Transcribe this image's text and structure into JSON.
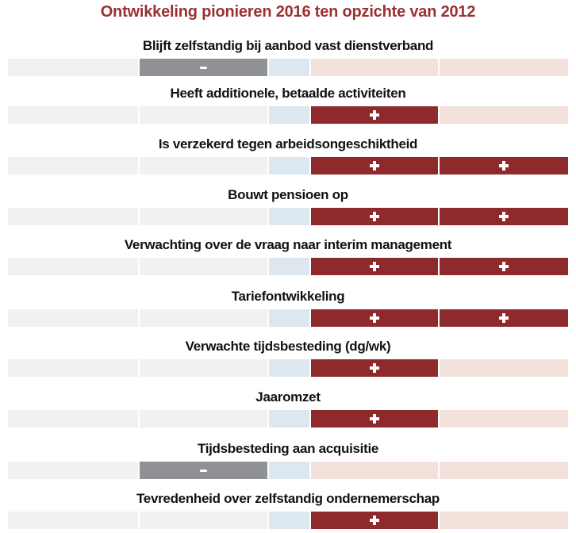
{
  "chart_data": {
    "type": "bar",
    "subtype": "diverging-change-indicator",
    "title": "Ontwikkeling pionieren 2016 ten opzichte van 2012",
    "categories": [
      "Blijft zelfstandig bij aanbod vast dienstverband",
      "Heeft additionele, betaalde activiteiten",
      "Is verzekerd tegen arbeidsongeschiktheid",
      "Bouwt pensioen op",
      "Verwachting over de vraag naar interim management",
      "Tariefontwikkeling",
      "Verwachte tijdsbesteding (dg/wk)",
      "Jaaromzet",
      "Tijdsbesteding aan acquisitie",
      "Tevredenheid over zelfstandig ondernemerschap"
    ],
    "values": [
      -1,
      1,
      2,
      2,
      2,
      2,
      1,
      1,
      -1,
      1
    ],
    "markers": [
      [
        "-"
      ],
      [
        "+"
      ],
      [
        "+",
        "+"
      ],
      [
        "+",
        "+"
      ],
      [
        "+",
        "+"
      ],
      [
        "+",
        "+"
      ],
      [
        "+"
      ],
      [
        "+"
      ],
      [
        "-"
      ],
      [
        "+"
      ]
    ],
    "scale": {
      "min": -2,
      "max": 2,
      "neutral_band": true
    },
    "grid": false,
    "legend_position": "none"
  },
  "colors": {
    "title_text": "#9a3132",
    "positive_fill": "#8e2a2c",
    "negative_fill": "#8f9194",
    "track_negative": "#f1f1f1",
    "track_neutral": "#dde7f0",
    "track_positive": "#f2e2db",
    "marker_symbol_color": "#ffffff",
    "label_text": "#111111",
    "background": "#ffffff"
  }
}
